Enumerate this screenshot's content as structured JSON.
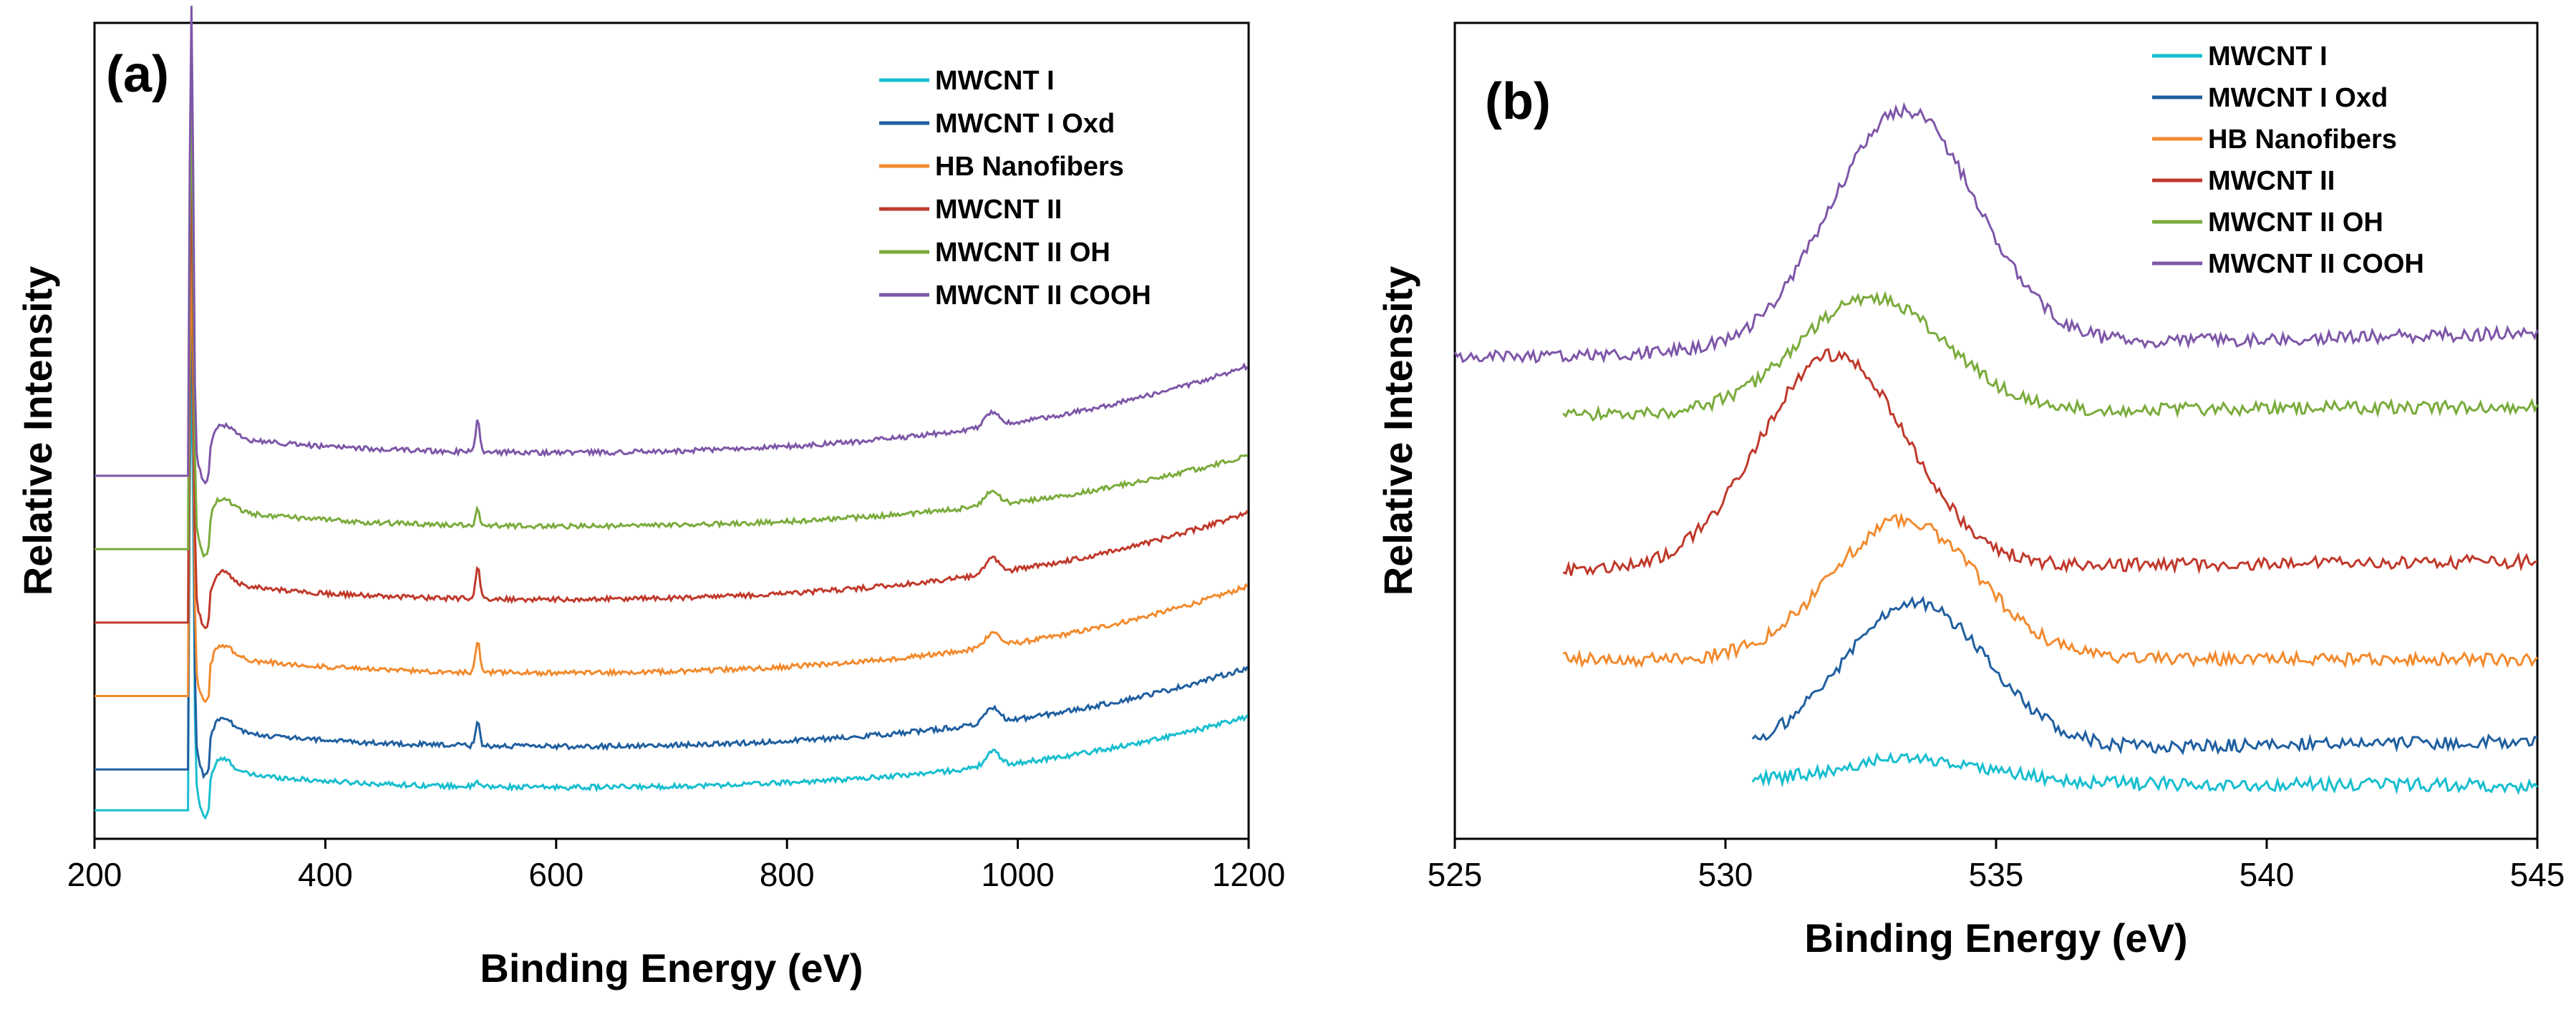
{
  "chart_data": [
    {
      "type": "line",
      "panel": "(a)",
      "xlabel": "Binding Energy (eV)",
      "ylabel": "Relative Intensity",
      "xlim": [
        200,
        1200
      ],
      "xticks": [
        "200",
        "400",
        "600",
        "800",
        "1000",
        "1200"
      ],
      "yticks_shown": false,
      "legend_position": "top-right",
      "series": [
        {
          "name": "MWCNT I",
          "color": "#17BECF",
          "baseline": 0.04,
          "c1s_peak": 0.55,
          "o1s_peak": 0.005,
          "end_value": 0.15
        },
        {
          "name": "MWCNT I Oxd",
          "color": "#1F5FA0",
          "baseline": 0.09,
          "c1s_peak": 0.58,
          "o1s_peak": 0.03,
          "end_value": 0.21
        },
        {
          "name": "HB Nanofibers",
          "color": "#F28A2E",
          "baseline": 0.18,
          "c1s_peak": 0.55,
          "o1s_peak": 0.04,
          "end_value": 0.31
        },
        {
          "name": "MWCNT II",
          "color": "#C0392B",
          "baseline": 0.27,
          "c1s_peak": 0.55,
          "o1s_peak": 0.04,
          "end_value": 0.4
        },
        {
          "name": "MWCNT II OH",
          "color": "#7AAB3C",
          "baseline": 0.36,
          "c1s_peak": 0.55,
          "o1s_peak": 0.02,
          "end_value": 0.47
        },
        {
          "name": "MWCNT II COOH",
          "color": "#7E57A8",
          "baseline": 0.45,
          "c1s_peak": 0.55,
          "o1s_peak": 0.04,
          "end_value": 0.58
        }
      ],
      "c1s_position": 284,
      "o1s_position": 532
    },
    {
      "type": "line",
      "panel": "(b)",
      "xlabel": "Binding Energy (eV)",
      "ylabel": "Relative Intensity",
      "xlim": [
        525,
        545
      ],
      "xticks": [
        "525",
        "530",
        "535",
        "540",
        "545"
      ],
      "yticks_shown": false,
      "legend_position": "top-center",
      "series": [
        {
          "name": "MWCNT I",
          "color": "#17BECF",
          "x_start": 530.5,
          "baseline": 0.07,
          "peak_center": 533.5,
          "peak_height": 0.03,
          "end_value": 0.065
        },
        {
          "name": "MWCNT I Oxd",
          "color": "#1F5FA0",
          "x_start": 530.5,
          "baseline": 0.105,
          "peak_center": 533.5,
          "peak_height": 0.18,
          "end_value": 0.12
        },
        {
          "name": "HB Nanofibers",
          "color": "#F28A2E",
          "x_start": 527.0,
          "baseline": 0.22,
          "peak_center": 533.3,
          "peak_height": 0.17,
          "end_value": 0.22
        },
        {
          "name": "MWCNT II",
          "color": "#C0392B",
          "x_start": 527.0,
          "baseline": 0.33,
          "peak_center": 532.0,
          "peak_height": 0.26,
          "end_value": 0.34
        },
        {
          "name": "MWCNT II OH",
          "color": "#7AAB3C",
          "x_start": 527.0,
          "baseline": 0.52,
          "peak_center": 532.7,
          "peak_height": 0.14,
          "end_value": 0.53
        },
        {
          "name": "MWCNT II COOH",
          "color": "#7E57A8",
          "x_start": 525.0,
          "baseline": 0.59,
          "peak_center": 533.3,
          "peak_height": 0.29,
          "end_value": 0.62
        }
      ]
    }
  ]
}
